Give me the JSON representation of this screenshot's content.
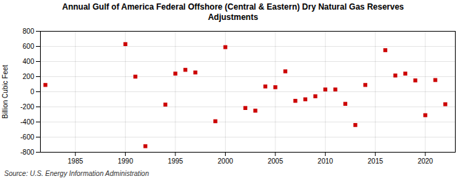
{
  "chart_data": {
    "type": "scatter",
    "title": "Annual Gulf of America Federal Offshore (Central & Eastern) Dry Natural Gas Reserves\nAdjustments",
    "ylabel": "Billion Cubic Feet",
    "annotations": [
      "Source: U.S. Energy Information Administration"
    ],
    "color": "#cc0000",
    "marker": "square",
    "grid": true,
    "xlim": [
      1981.5,
      2023
    ],
    "ylim": [
      -800,
      800
    ],
    "xticks": [
      1985,
      1990,
      1995,
      2000,
      2005,
      2010,
      2015,
      2020
    ],
    "yticks": [
      -800,
      -600,
      -400,
      -200,
      0,
      200,
      400,
      600,
      800
    ],
    "x": [
      1982,
      1990,
      1991,
      1992,
      1994,
      1995,
      1996,
      1997,
      1999,
      2000,
      2002,
      2003,
      2004,
      2005,
      2006,
      2007,
      2008,
      2009,
      2010,
      2011,
      2012,
      2013,
      2014,
      2016,
      2017,
      2018,
      2019,
      2020,
      2021,
      2022
    ],
    "values": [
      90,
      630,
      200,
      -720,
      -170,
      240,
      290,
      255,
      -390,
      590,
      -215,
      -250,
      70,
      60,
      270,
      -120,
      -100,
      -60,
      30,
      30,
      -160,
      -440,
      90,
      550,
      215,
      240,
      150,
      -310,
      155,
      -165
    ]
  }
}
